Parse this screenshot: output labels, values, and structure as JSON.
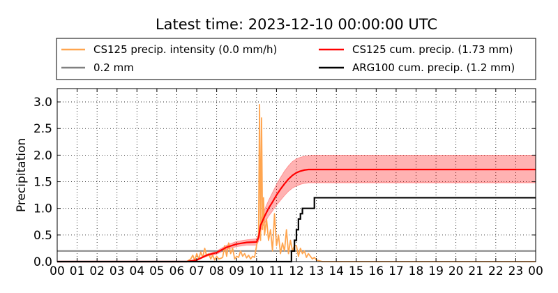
{
  "chart_data": {
    "type": "line",
    "title": "Latest time: 2023-12-10 00:00:00 UTC",
    "ylabel": "Precipitation",
    "xlabel": "",
    "xlim": [
      0,
      24
    ],
    "ylim": [
      0,
      3.25
    ],
    "grid": true,
    "legend_position": "top",
    "x_tick_labels": [
      "00",
      "01",
      "02",
      "03",
      "04",
      "05",
      "06",
      "07",
      "08",
      "09",
      "10",
      "11",
      "12",
      "13",
      "14",
      "15",
      "16",
      "17",
      "18",
      "19",
      "20",
      "21",
      "22",
      "23",
      "00"
    ],
    "y_ticks": [
      0.0,
      0.5,
      1.0,
      1.5,
      2.0,
      2.5,
      3.0
    ],
    "y_tick_labels": [
      "0.0",
      "0.5",
      "1.0",
      "1.5",
      "2.0",
      "2.5",
      "3.0"
    ],
    "legend": [
      {
        "label": "CS125 precip. intensity (0.0 mm/h)",
        "color": "#ffa54f"
      },
      {
        "label": "CS125 cum. precip. (1.73 mm)",
        "color": "#ff0000"
      },
      {
        "label": "0.2 mm",
        "color": "#808080"
      },
      {
        "label": "ARG100 cum. precip. (1.2 mm)",
        "color": "#000000"
      }
    ],
    "series": [
      {
        "key": "intensity",
        "color": "#ffa54f",
        "x": [
          0,
          6.5,
          6.7,
          6.8,
          6.9,
          7.0,
          7.1,
          7.2,
          7.3,
          7.4,
          7.5,
          7.6,
          7.7,
          7.8,
          7.9,
          8.0,
          8.1,
          8.2,
          8.3,
          8.4,
          8.5,
          8.6,
          8.7,
          8.8,
          8.9,
          9.0,
          9.1,
          9.2,
          9.3,
          9.4,
          9.5,
          9.6,
          9.7,
          9.8,
          9.9,
          10.0,
          10.1,
          10.15,
          10.2,
          10.25,
          10.3,
          10.35,
          10.4,
          10.5,
          10.6,
          10.7,
          10.8,
          10.9,
          11.0,
          11.1,
          11.2,
          11.3,
          11.4,
          11.5,
          11.6,
          11.7,
          11.8,
          11.9,
          12.0,
          12.1,
          12.2,
          12.3,
          12.4,
          12.5,
          12.6,
          12.7,
          12.8,
          12.9,
          13.0,
          13.3,
          24
        ],
        "y": [
          0,
          0,
          0.05,
          0.12,
          0.02,
          0.15,
          0.05,
          0.18,
          0.08,
          0.25,
          0.1,
          0.15,
          0.05,
          0.12,
          0.03,
          0.1,
          0.05,
          0.06,
          0.08,
          0.3,
          0.1,
          0.35,
          0.15,
          0.25,
          0.05,
          0.1,
          0.08,
          0.2,
          0.1,
          0.15,
          0.07,
          0.12,
          0.05,
          0.1,
          0.08,
          0.3,
          0.5,
          2.95,
          0.4,
          2.7,
          0.6,
          1.2,
          0.5,
          0.8,
          0.4,
          0.6,
          0.2,
          0.9,
          0.3,
          0.5,
          0.15,
          0.35,
          0.2,
          0.6,
          0.15,
          0.4,
          0.2,
          0.3,
          0.3,
          0.1,
          0.25,
          0.15,
          0.2,
          0.08,
          0.15,
          0.1,
          0.05,
          0.08,
          0.03,
          0,
          0
        ]
      },
      {
        "key": "cumulative",
        "color": "#ff0000",
        "x": [
          0,
          6.5,
          7.0,
          7.5,
          8.0,
          8.5,
          9.0,
          9.5,
          10.0,
          10.1,
          10.2,
          10.4,
          10.6,
          10.8,
          11.0,
          11.2,
          11.4,
          11.6,
          11.8,
          12.0,
          12.2,
          12.4,
          12.6,
          12.8,
          13.0,
          13.5,
          24
        ],
        "y": [
          0,
          0,
          0.03,
          0.12,
          0.17,
          0.27,
          0.33,
          0.36,
          0.37,
          0.45,
          0.68,
          0.85,
          1.0,
          1.12,
          1.25,
          1.36,
          1.46,
          1.55,
          1.62,
          1.67,
          1.7,
          1.72,
          1.73,
          1.73,
          1.73,
          1.73,
          1.73
        ],
        "band_upper": [
          0,
          0,
          0.04,
          0.14,
          0.2,
          0.31,
          0.38,
          0.41,
          0.43,
          0.52,
          0.78,
          0.98,
          1.15,
          1.3,
          1.45,
          1.58,
          1.7,
          1.8,
          1.88,
          1.93,
          1.96,
          1.98,
          1.99,
          2.0,
          2.0,
          2.0,
          2.0
        ],
        "band_lower": [
          0,
          0,
          0.02,
          0.1,
          0.14,
          0.23,
          0.28,
          0.31,
          0.31,
          0.38,
          0.58,
          0.72,
          0.85,
          0.95,
          1.06,
          1.15,
          1.24,
          1.32,
          1.38,
          1.42,
          1.45,
          1.47,
          1.48,
          1.48,
          1.48,
          1.48,
          1.48
        ]
      },
      {
        "key": "threshold",
        "color": "#808080",
        "x": [
          0,
          24
        ],
        "y": [
          0.2,
          0.2
        ]
      },
      {
        "key": "arg100",
        "color": "#000000",
        "x": [
          0,
          11.75,
          11.75,
          11.9,
          11.9,
          12.0,
          12.0,
          12.1,
          12.1,
          12.2,
          12.2,
          12.3,
          12.3,
          12.4,
          12.4,
          12.9,
          12.9,
          24
        ],
        "y": [
          0,
          0,
          0.2,
          0.2,
          0.4,
          0.4,
          0.6,
          0.6,
          0.8,
          0.8,
          0.9,
          0.9,
          1.0,
          1.0,
          1.0,
          1.0,
          1.2,
          1.2
        ]
      }
    ]
  }
}
